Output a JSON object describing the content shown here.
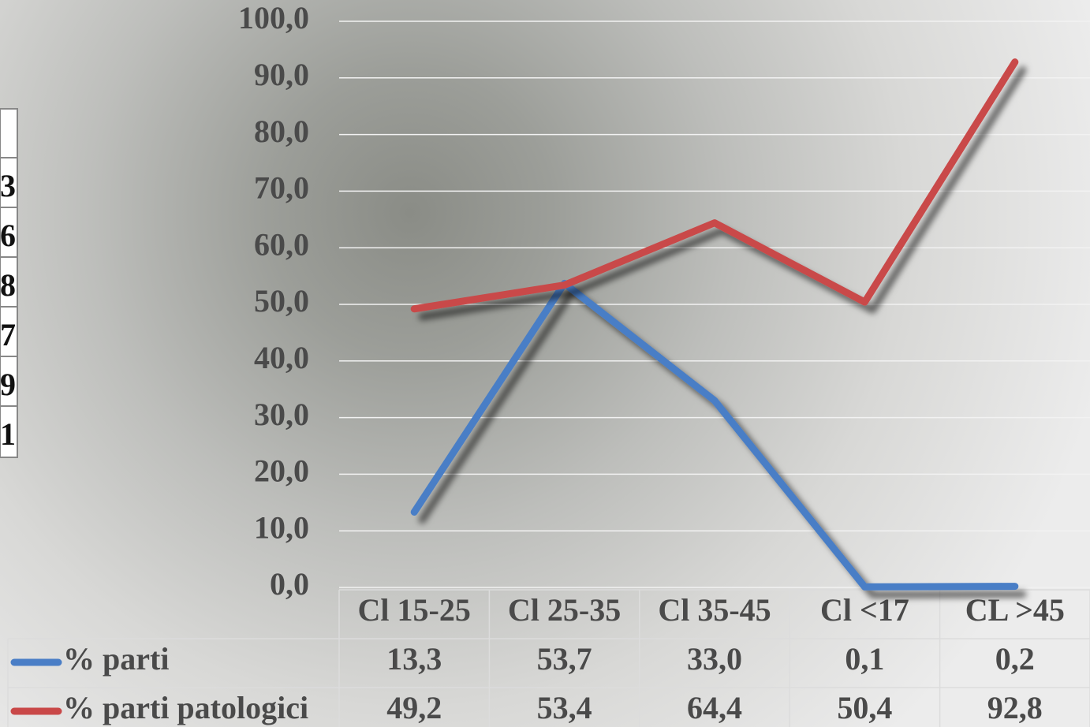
{
  "fragment_cells": [
    "3",
    "6",
    "8",
    "7",
    "9",
    "1"
  ],
  "chart_data": {
    "type": "line",
    "categories": [
      "Cl 15-25",
      "Cl 25-35",
      "Cl 35-45",
      "Cl <17",
      "CL >45"
    ],
    "series": [
      {
        "name": "% parti",
        "color": "#4a7ec6",
        "values": [
          13.3,
          53.7,
          33.0,
          0.1,
          0.2
        ],
        "value_labels": [
          "13,3",
          "53,7",
          "33,0",
          "0,1",
          "0,2"
        ]
      },
      {
        "name": "% parti patologici",
        "color": "#c94848",
        "values": [
          49.2,
          53.4,
          64.4,
          50.4,
          92.8
        ],
        "value_labels": [
          "49,2",
          "53,4",
          "64,4",
          "50,4",
          "92,8"
        ]
      }
    ],
    "ylim": [
      0,
      100
    ],
    "yticks": [
      {
        "value": 0,
        "label": "0,0"
      },
      {
        "value": 10,
        "label": "10,0"
      },
      {
        "value": 20,
        "label": "20,0"
      },
      {
        "value": 30,
        "label": "30,0"
      },
      {
        "value": 40,
        "label": "40,0"
      },
      {
        "value": 50,
        "label": "50,0"
      },
      {
        "value": 60,
        "label": "60,0"
      },
      {
        "value": 70,
        "label": "70,0"
      },
      {
        "value": 80,
        "label": "80,0"
      },
      {
        "value": 90,
        "label": "90,0"
      },
      {
        "value": 100,
        "label": "100,0"
      }
    ],
    "grid": true
  }
}
